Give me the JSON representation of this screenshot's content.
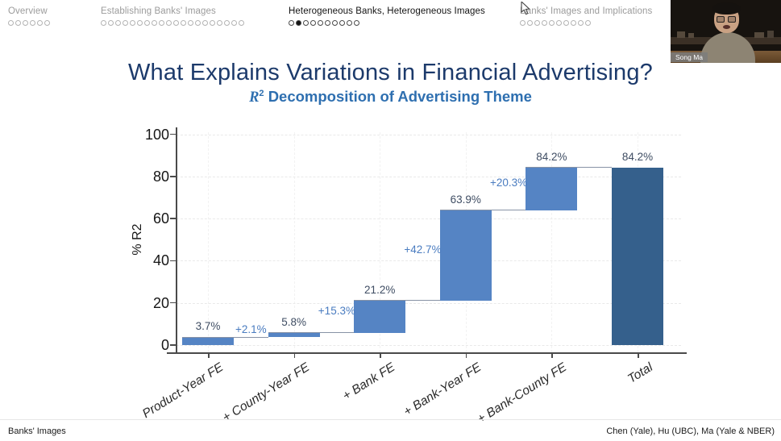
{
  "header": {
    "sections": [
      {
        "label": "Overview",
        "dots": 6,
        "active": false,
        "active_dot": -1
      },
      {
        "label": "Establishing Banks' Images",
        "dots": 20,
        "active": false,
        "active_dot": -1
      },
      {
        "label": "Heterogeneous Banks, Heterogeneous Images",
        "dots": 10,
        "active": true,
        "active_dot": 1
      },
      {
        "label": "Banks' Images and Implications",
        "dots": 10,
        "active": false,
        "active_dot": -1
      }
    ]
  },
  "webcam": {
    "name": "Song Ma"
  },
  "title": "What Explains Variations in Financial Advertising?",
  "subtitle": {
    "r": "R",
    "exponent": "2",
    "text": "Decomposition of Advertising Theme"
  },
  "footer": {
    "left": "Banks' Images",
    "right": "Chen (Yale), Hu (UBC), Ma (Yale & NBER)"
  },
  "chart_data": {
    "type": "bar",
    "subtype": "waterfall",
    "title": "R2 Decomposition of Advertising Theme",
    "categories": [
      "Product-Year FE",
      "+ County-Year FE",
      "+ Bank FE",
      "+ Bank-Year FE",
      "+ Bank-County FE",
      "Total"
    ],
    "cumulative": [
      3.7,
      5.8,
      21.2,
      63.9,
      84.2,
      84.2
    ],
    "is_total": [
      false,
      false,
      false,
      false,
      false,
      true
    ],
    "bar_labels": [
      "3.7%",
      "5.8%",
      "21.2%",
      "63.9%",
      "84.2%",
      "84.2%"
    ],
    "increment_labels": [
      "+2.1%",
      "+15.3%",
      "+42.7%",
      "+20.3%"
    ],
    "ylabel": "% R2",
    "yticks": [
      0,
      20,
      40,
      60,
      80,
      100
    ],
    "ylim": [
      0,
      100
    ],
    "grid": true,
    "legend": "none",
    "colors": {
      "bar": "#5584c4",
      "total_bar": "#35608c",
      "value_label": "#3f4d63",
      "increment_label": "#4a7cc0",
      "connector": "#8893a6"
    }
  }
}
